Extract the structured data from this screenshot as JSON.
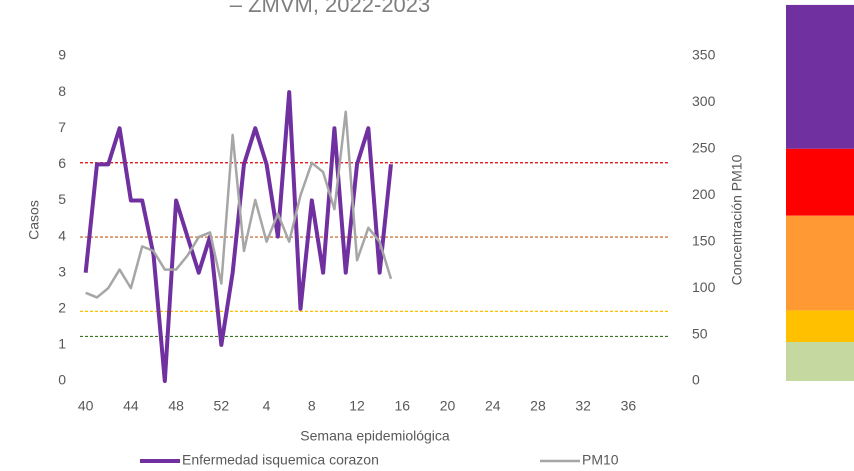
{
  "chart_data": {
    "type": "line",
    "title": "– ZMVM, 2022-2023",
    "x_label": "Semana epidemiológica",
    "y_label": "Casos",
    "y2_label": "Concentración PM10",
    "categories": [
      "40",
      null,
      null,
      null,
      "44",
      null,
      null,
      null,
      "48",
      null,
      null,
      null,
      "52",
      null,
      null,
      null,
      "4",
      null,
      null,
      null,
      "8",
      null,
      null,
      null,
      "12",
      null,
      null,
      null,
      "16",
      null,
      null,
      null,
      "20",
      null,
      null,
      null,
      "24",
      null,
      null,
      null,
      "28",
      null,
      null,
      null,
      "32",
      null,
      null,
      null,
      "36",
      null,
      null,
      null
    ],
    "series": [
      {
        "name": "Enfermedad isquemica corazon",
        "color": "#7030a0",
        "values": [
          3,
          6,
          6,
          7,
          5,
          5,
          3.5,
          0,
          5,
          4,
          3,
          4,
          1,
          3,
          6,
          7,
          6,
          4,
          8,
          2,
          5,
          3,
          7,
          3,
          6,
          7,
          3,
          6,
          null,
          null,
          null,
          null,
          null,
          null,
          null,
          null,
          null,
          null,
          null,
          null,
          null,
          null,
          null,
          null,
          null,
          null,
          null,
          null,
          null,
          null,
          null,
          null
        ]
      },
      {
        "name": "PM10",
        "color": "#a6a6a6",
        "axis": "y2",
        "values": [
          95,
          90,
          100,
          120,
          100,
          145,
          140,
          120,
          120,
          135,
          155,
          160,
          105,
          265,
          140,
          195,
          150,
          180,
          150,
          200,
          235,
          225,
          185,
          290,
          130,
          165,
          150,
          110,
          null,
          null,
          null,
          null,
          null,
          null,
          null,
          null,
          null,
          null,
          null,
          null,
          null,
          null,
          null,
          null,
          null,
          null,
          null,
          null,
          null,
          null,
          null,
          null
        ]
      }
    ],
    "ylim": [
      0,
      9
    ],
    "yticks": [
      0,
      1,
      2,
      3,
      4,
      5,
      6,
      7,
      8,
      9
    ],
    "y2lim": [
      0,
      350
    ],
    "y2ticks": [
      0,
      50,
      100,
      150,
      200,
      250,
      300,
      350
    ],
    "grid": false,
    "reference_lines": [
      {
        "value": 235,
        "color": "#e00000"
      },
      {
        "value": 155,
        "color": "#c55a11"
      },
      {
        "value": 75,
        "color": "#ffc000"
      },
      {
        "value": 48,
        "color": "#38761d"
      }
    ],
    "color_bands": [
      {
        "from": 250,
        "to": 405,
        "color": "#7030a0"
      },
      {
        "from": 178,
        "to": 250,
        "color": "#ff0000"
      },
      {
        "from": 76,
        "to": 178,
        "color": "#ff9933"
      },
      {
        "from": 42,
        "to": 76,
        "color": "#ffc000"
      },
      {
        "from": 0,
        "to": 42,
        "color": "#c5d89f"
      }
    ]
  }
}
